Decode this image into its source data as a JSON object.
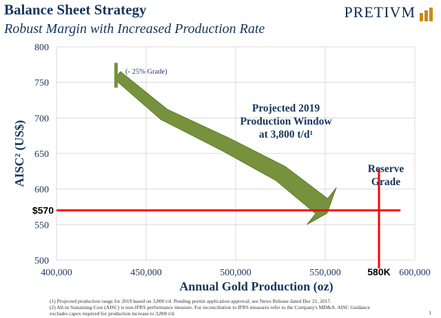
{
  "header": {
    "title": "Balance Sheet Strategy",
    "subtitle": "Robust Margin with Increased Production Rate"
  },
  "logo": {
    "text": "PRETIVM",
    "bar_color": "#c98a1b"
  },
  "chart_data": {
    "type": "line",
    "xlabel": "Annual Gold Production (oz)",
    "ylabel": "AISC² (US$)",
    "xlim": [
      400000,
      600000
    ],
    "ylim": [
      500,
      800
    ],
    "x_ticks": [
      400000,
      450000,
      500000,
      550000,
      600000
    ],
    "x_tick_labels": [
      "400,000",
      "450,000",
      "500,000",
      "550,000",
      "600,000"
    ],
    "y_ticks": [
      500,
      550,
      600,
      650,
      700,
      750,
      800
    ],
    "y_tick_labels": [
      "500",
      "550",
      "600",
      "650",
      "700",
      "750",
      "800"
    ],
    "grid": true,
    "arrow": {
      "color": "#76923c",
      "points": [
        [
          434000,
          760
        ],
        [
          460000,
          705
        ],
        [
          495000,
          662
        ],
        [
          525000,
          622
        ],
        [
          548000,
          576
        ]
      ]
    },
    "reference_lines": {
      "color": "#ff0000",
      "horizontal_value": 570,
      "horizontal_label": "$570",
      "vertical_value": 580000,
      "vertical_label": "580K"
    },
    "annotations": {
      "grade_label": "(- 25% Grade)",
      "window_lines": [
        "Projected 2019",
        "Production Window",
        "at 3,800 t/d¹"
      ],
      "reserve_lines": [
        "Reserve",
        "Grade"
      ]
    },
    "colors": {
      "text": "#17365d",
      "grid": "#d9d9d9",
      "tick_text": "#1f3864"
    }
  },
  "footnotes": [
    "(1) Projected production range for 2019 based on 3,800 t/d. Pending permit application approval; see News Release dated Dec 21, 2017.",
    "(2) All-in Sustaining Cost (AISC) is non-IFRS performance measure. For reconciliation to IFRS measures refer to the Company's MD&A. AISC Guidance",
    "excludes capex required for production increase to 3,800 t/d."
  ],
  "page_number": "1"
}
